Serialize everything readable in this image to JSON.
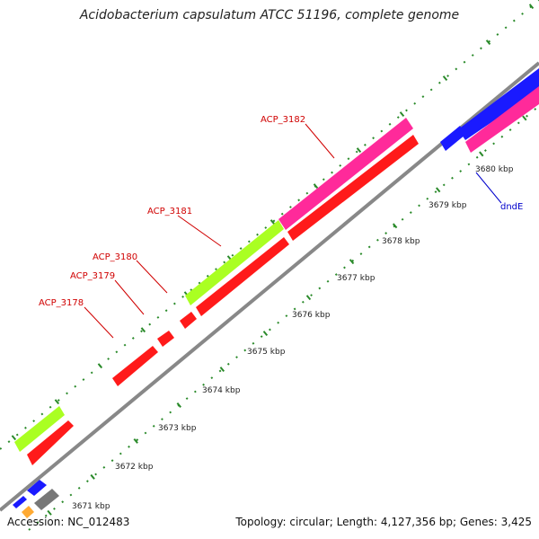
{
  "title": "Acidobacterium capsulatum ATCC 51196, complete genome",
  "footer": {
    "accession": "Accession: NC_012483",
    "topology": "Topology: circular; Length: 4,127,356 bp; Genes: 3,425"
  },
  "colors": {
    "cds_red": "#ff1a1a",
    "cds_magenta": "#ff2a9a",
    "cds_green": "#aaff22",
    "cds_blue": "#1a1aff",
    "cds_orange": "#ffaa33",
    "cds_gray": "#777777",
    "backbone": "#888888",
    "tick_green": "#2a8a2a",
    "label_red": "#d00000",
    "label_blue": "#0000cc"
  },
  "scale_labels": [
    "3671 kbp",
    "3672 kbp",
    "3673 kbp",
    "3674 kbp",
    "3675 kbp",
    "3676 kbp",
    "3677 kbp",
    "3678 kbp",
    "3679 kbp",
    "3680 kbp"
  ],
  "gene_labels": [
    {
      "text": "ACP_3178",
      "color": "red"
    },
    {
      "text": "ACP_3179",
      "color": "red"
    },
    {
      "text": "ACP_3180",
      "color": "red"
    },
    {
      "text": "ACP_3181",
      "color": "red"
    },
    {
      "text": "ACP_3182",
      "color": "red"
    },
    {
      "text": "dndE",
      "color": "blue"
    }
  ]
}
